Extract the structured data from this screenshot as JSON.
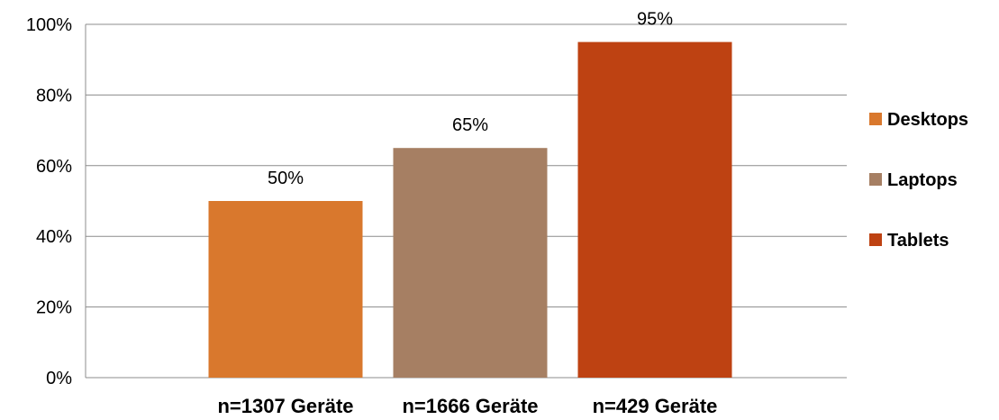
{
  "chart_data": {
    "type": "bar",
    "categories": [
      "n=1307 Geräte",
      "n=1666 Geräte",
      "n=429 Geräte"
    ],
    "series": [
      {
        "name": "Desktops",
        "values": [
          50,
          null,
          null
        ],
        "color": "#D9782D"
      },
      {
        "name": "Laptops",
        "values": [
          null,
          65,
          null
        ],
        "color": "#A67F63"
      },
      {
        "name": "Tablets",
        "values": [
          null,
          null,
          95
        ],
        "color": "#BE4212"
      }
    ],
    "data_labels": [
      "50%",
      "65%",
      "95%"
    ],
    "y_ticks": [
      "0%",
      "20%",
      "40%",
      "60%",
      "80%",
      "100%"
    ],
    "ylim": [
      0,
      100
    ],
    "grid": true,
    "legend_position": "right"
  }
}
